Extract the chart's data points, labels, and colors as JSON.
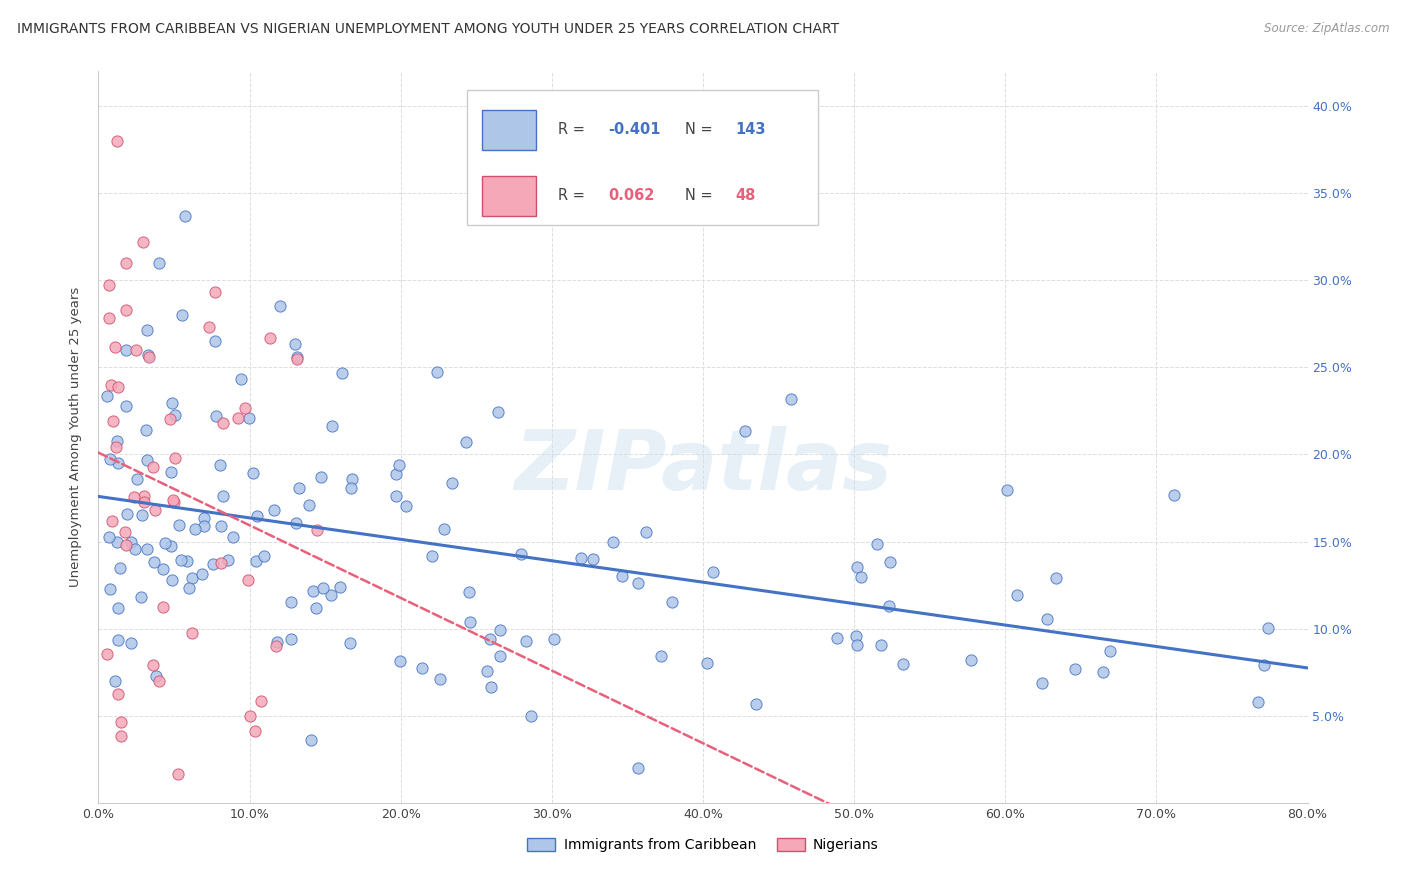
{
  "title": "IMMIGRANTS FROM CARIBBEAN VS NIGERIAN UNEMPLOYMENT AMONG YOUTH UNDER 25 YEARS CORRELATION CHART",
  "source": "Source: ZipAtlas.com",
  "ylabel": "Unemployment Among Youth under 25 years",
  "watermark": "ZIPatlas",
  "legend_caribbean": "Immigrants from Caribbean",
  "legend_nigerian": "Nigerians",
  "r_caribbean": -0.401,
  "n_caribbean": 143,
  "r_nigerian": 0.062,
  "n_nigerian": 48,
  "color_caribbean": "#aec6e8",
  "color_nigerian": "#f5a8b8",
  "trendline_caribbean": "#4472c4",
  "trendline_nigerian": "#e8607a",
  "xlim": [
    0.0,
    0.8
  ],
  "ylim": [
    0.0,
    0.42
  ],
  "figsize": [
    14.06,
    8.92
  ],
  "dpi": 100,
  "background_color": "#ffffff",
  "grid_color": "#dddddd",
  "title_color": "#333333",
  "right_tick_color": "#4472c4"
}
